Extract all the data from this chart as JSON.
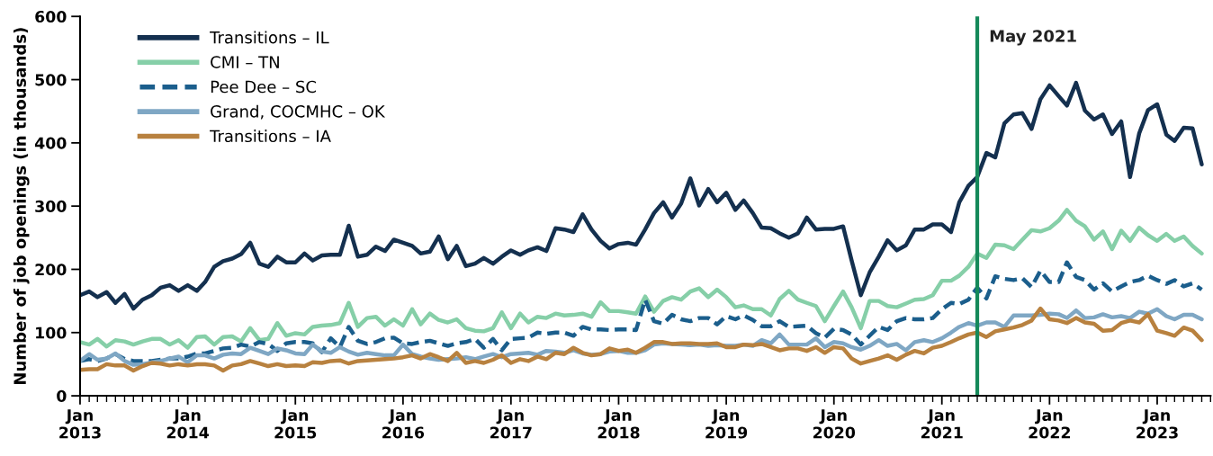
{
  "chart_data": {
    "type": "line",
    "ylabel": "Number of job openings (in thousands)",
    "x": [
      "2013-01",
      "2013-02",
      "2013-03",
      "2013-04",
      "2013-05",
      "2013-06",
      "2013-07",
      "2013-08",
      "2013-09",
      "2013-10",
      "2013-11",
      "2013-12",
      "2014-01",
      "2014-02",
      "2014-03",
      "2014-04",
      "2014-05",
      "2014-06",
      "2014-07",
      "2014-08",
      "2014-09",
      "2014-10",
      "2014-11",
      "2014-12",
      "2015-01",
      "2015-02",
      "2015-03",
      "2015-04",
      "2015-05",
      "2015-06",
      "2015-07",
      "2015-08",
      "2015-09",
      "2015-10",
      "2015-11",
      "2015-12",
      "2016-01",
      "2016-02",
      "2016-03",
      "2016-04",
      "2016-05",
      "2016-06",
      "2016-07",
      "2016-08",
      "2016-09",
      "2016-10",
      "2016-11",
      "2016-12",
      "2017-01",
      "2017-02",
      "2017-03",
      "2017-04",
      "2017-05",
      "2017-06",
      "2017-07",
      "2017-08",
      "2017-09",
      "2017-10",
      "2017-11",
      "2017-12",
      "2018-01",
      "2018-02",
      "2018-03",
      "2018-04",
      "2018-05",
      "2018-06",
      "2018-07",
      "2018-08",
      "2018-09",
      "2018-10",
      "2018-11",
      "2018-12",
      "2019-01",
      "2019-02",
      "2019-03",
      "2019-04",
      "2019-05",
      "2019-06",
      "2019-07",
      "2019-08",
      "2019-09",
      "2019-10",
      "2019-11",
      "2019-12",
      "2020-01",
      "2020-02",
      "2020-03",
      "2020-04",
      "2020-05",
      "2020-06",
      "2020-07",
      "2020-08",
      "2020-09",
      "2020-10",
      "2020-11",
      "2020-12",
      "2021-01",
      "2021-02",
      "2021-03",
      "2021-04",
      "2021-05",
      "2021-06",
      "2021-07",
      "2021-08",
      "2021-09",
      "2021-10",
      "2021-11",
      "2021-12",
      "2022-01",
      "2022-02",
      "2022-03",
      "2022-04",
      "2022-05",
      "2022-06",
      "2022-07",
      "2022-08",
      "2022-09",
      "2022-10",
      "2022-11",
      "2022-12",
      "2023-01",
      "2023-02",
      "2023-03",
      "2023-04",
      "2023-05",
      "2023-06"
    ],
    "series": [
      {
        "name": "Transitions – IL",
        "color": "#14304f",
        "line_style": "solid",
        "values": [
          159,
          165,
          156,
          164,
          147,
          161,
          138,
          152,
          159,
          171,
          175,
          166,
          175,
          166,
          180,
          204,
          213,
          217,
          224,
          242,
          209,
          204,
          220,
          211,
          211,
          225,
          214,
          222,
          223,
          223,
          269,
          220,
          223,
          236,
          229,
          247,
          242,
          237,
          225,
          228,
          252,
          216,
          237,
          205,
          209,
          218,
          209,
          220,
          230,
          223,
          230,
          235,
          229,
          265,
          263,
          259,
          287,
          263,
          245,
          233,
          240,
          242,
          239,
          263,
          289,
          306,
          282,
          304,
          344,
          301,
          327,
          306,
          321,
          294,
          309,
          289,
          266,
          265,
          257,
          250,
          257,
          282,
          263,
          264,
          264,
          268,
          214,
          159,
          195,
          220,
          246,
          230,
          238,
          263,
          263,
          271,
          271,
          259,
          306,
          332,
          346,
          384,
          377,
          431,
          445,
          447,
          422,
          469,
          491,
          474,
          459,
          495,
          451,
          437,
          445,
          414,
          434,
          346,
          415,
          452,
          461,
          413,
          403,
          424,
          423,
          366
        ]
      },
      {
        "name": "CMI – TN",
        "color": "#86cfa8",
        "line_style": "solid",
        "values": [
          85,
          81,
          90,
          78,
          88,
          86,
          81,
          86,
          90,
          90,
          81,
          88,
          76,
          93,
          94,
          81,
          93,
          94,
          86,
          107,
          88,
          90,
          115,
          95,
          99,
          97,
          109,
          111,
          112,
          115,
          147,
          109,
          123,
          125,
          111,
          121,
          111,
          137,
          113,
          130,
          120,
          116,
          121,
          107,
          103,
          102,
          107,
          132,
          107,
          130,
          116,
          125,
          123,
          130,
          127,
          128,
          130,
          125,
          148,
          134,
          134,
          132,
          130,
          157,
          133,
          150,
          156,
          152,
          165,
          170,
          156,
          168,
          156,
          140,
          143,
          137,
          137,
          127,
          153,
          166,
          152,
          147,
          142,
          118,
          142,
          165,
          140,
          107,
          150,
          150,
          142,
          140,
          146,
          152,
          153,
          159,
          182,
          182,
          190,
          204,
          225,
          218,
          239,
          238,
          232,
          247,
          262,
          260,
          265,
          277,
          294,
          277,
          268,
          247,
          260,
          232,
          261,
          245,
          266,
          254,
          245,
          256,
          245,
          252,
          237,
          225
        ]
      },
      {
        "name": "Pee Dee – SC",
        "color": "#1b5e8c",
        "line_style": "dashed",
        "values": [
          55,
          58,
          55,
          59,
          66,
          58,
          55,
          55,
          55,
          57,
          59,
          59,
          62,
          67,
          67,
          71,
          75,
          76,
          81,
          78,
          85,
          82,
          71,
          83,
          85,
          85,
          83,
          69,
          91,
          77,
          109,
          87,
          82,
          85,
          91,
          92,
          83,
          82,
          85,
          87,
          83,
          79,
          83,
          85,
          90,
          76,
          90,
          72,
          90,
          91,
          92,
          100,
          98,
          100,
          100,
          95,
          109,
          105,
          105,
          104,
          105,
          105,
          104,
          152,
          118,
          114,
          128,
          121,
          118,
          123,
          123,
          113,
          126,
          121,
          127,
          120,
          110,
          110,
          118,
          109,
          110,
          111,
          99,
          92,
          106,
          104,
          97,
          81,
          95,
          109,
          104,
          118,
          123,
          121,
          121,
          123,
          137,
          147,
          145,
          152,
          171,
          154,
          189,
          185,
          183,
          186,
          172,
          198,
          180,
          180,
          211,
          188,
          183,
          168,
          178,
          165,
          173,
          180,
          183,
          190,
          183,
          177,
          183,
          173,
          178,
          168
        ]
      },
      {
        "name": "Grand, COCMHC – OK",
        "color": "#7fa7c4",
        "line_style": "solid",
        "values": [
          55,
          66,
          57,
          59,
          67,
          55,
          49,
          50,
          53,
          55,
          59,
          62,
          53,
          64,
          64,
          59,
          65,
          67,
          66,
          76,
          71,
          66,
          75,
          72,
          67,
          66,
          81,
          70,
          68,
          77,
          70,
          65,
          68,
          66,
          64,
          64,
          81,
          66,
          62,
          59,
          57,
          58,
          59,
          61,
          58,
          62,
          66,
          61,
          66,
          67,
          68,
          65,
          71,
          70,
          68,
          72,
          67,
          65,
          66,
          70,
          71,
          68,
          68,
          72,
          81,
          83,
          82,
          81,
          80,
          81,
          79,
          80,
          79,
          79,
          81,
          79,
          88,
          83,
          97,
          81,
          81,
          81,
          91,
          77,
          85,
          83,
          77,
          73,
          79,
          88,
          79,
          82,
          72,
          85,
          88,
          85,
          91,
          100,
          109,
          115,
          111,
          116,
          116,
          109,
          127,
          127,
          127,
          128,
          130,
          129,
          123,
          135,
          123,
          124,
          129,
          124,
          126,
          123,
          133,
          130,
          137,
          126,
          121,
          128,
          128,
          121
        ]
      },
      {
        "name": "Transitions – IA",
        "color": "#b8813f",
        "line_style": "solid",
        "values": [
          41,
          42,
          42,
          50,
          48,
          48,
          40,
          47,
          52,
          51,
          48,
          50,
          48,
          50,
          50,
          48,
          40,
          48,
          50,
          55,
          51,
          47,
          50,
          47,
          48,
          47,
          53,
          52,
          55,
          56,
          51,
          55,
          56,
          57,
          58,
          59,
          61,
          64,
          59,
          66,
          61,
          55,
          68,
          52,
          55,
          52,
          57,
          64,
          52,
          58,
          55,
          62,
          58,
          68,
          66,
          76,
          68,
          64,
          66,
          75,
          71,
          73,
          68,
          76,
          85,
          85,
          82,
          83,
          83,
          82,
          82,
          83,
          77,
          77,
          81,
          80,
          82,
          77,
          72,
          75,
          75,
          71,
          77,
          68,
          77,
          75,
          59,
          51,
          55,
          59,
          64,
          57,
          65,
          71,
          67,
          76,
          79,
          85,
          91,
          97,
          100,
          93,
          102,
          105,
          108,
          112,
          119,
          138,
          121,
          119,
          115,
          123,
          116,
          114,
          103,
          104,
          115,
          119,
          116,
          129,
          103,
          99,
          95,
          108,
          103,
          88
        ]
      }
    ],
    "xlim": [
      "2013-01",
      "2023-07"
    ],
    "xticks": [
      {
        "value": "2013-01",
        "label": "Jan\n2013"
      },
      {
        "value": "2014-01",
        "label": "Jan\n2014"
      },
      {
        "value": "2015-01",
        "label": "Jan\n2015"
      },
      {
        "value": "2016-01",
        "label": "Jan\n2016"
      },
      {
        "value": "2017-01",
        "label": "Jan\n2017"
      },
      {
        "value": "2018-01",
        "label": "Jan\n2018"
      },
      {
        "value": "2019-01",
        "label": "Jan\n2019"
      },
      {
        "value": "2020-01",
        "label": "Jan\n2020"
      },
      {
        "value": "2021-01",
        "label": "Jan\n2021"
      },
      {
        "value": "2022-01",
        "label": "Jan\n2022"
      },
      {
        "value": "2023-01",
        "label": "Jan\n2023"
      }
    ],
    "ylim": [
      0,
      600
    ],
    "yticks": [
      0,
      100,
      200,
      300,
      400,
      500,
      600
    ],
    "ref_lines": [
      {
        "axis": "x",
        "value": "2021-05",
        "label": "May 2021",
        "color": "#15895a",
        "line_style": "solid"
      }
    ],
    "grid": false,
    "legend": "top left",
    "marker": "none"
  }
}
